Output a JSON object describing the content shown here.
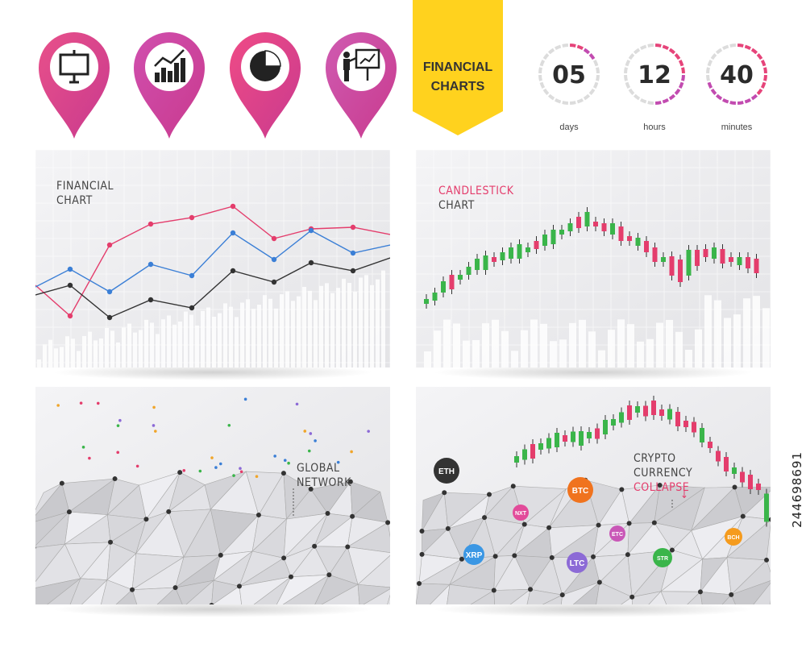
{
  "header": {
    "pins": [
      {
        "icon": "presentation-board-icon",
        "color": "#e8508a"
      },
      {
        "icon": "bar-chart-growth-icon",
        "color": "#d04fae"
      },
      {
        "icon": "pie-chart-icon",
        "color": "#ef4b86"
      },
      {
        "icon": "presenter-board-icon",
        "color": "#cf5bb1"
      }
    ],
    "ribbon": {
      "line1": "FINANCIAL",
      "line2": "CHARTS",
      "color": "#ffd21e"
    },
    "timers": [
      {
        "value": "05",
        "unit": "days",
        "fraction": 0.15
      },
      {
        "value": "12",
        "unit": "hours",
        "fraction": 0.5
      },
      {
        "value": "40",
        "unit": "minutes",
        "fraction": 0.67
      }
    ],
    "timer_accent": "#d6407f"
  },
  "panels": {
    "financial": {
      "line1": "FINANCIAL",
      "line2": "CHART"
    },
    "candlestick": {
      "line1": "CANDLESTICK",
      "line2": "CHART",
      "accent": "#e43d6c"
    },
    "global": {
      "line1": "GLOBAL",
      "line2": "NETWORK"
    },
    "crypto": {
      "line1": "CRYPTO",
      "line2": "CURRENCY",
      "line3": "COLLAPSE",
      "arrow": "↓",
      "coins": [
        {
          "code": "ETH",
          "color": "#333333"
        },
        {
          "code": "BTC",
          "color": "#f0731e"
        },
        {
          "code": "NXT",
          "color": "#e24b9a"
        },
        {
          "code": "XRP",
          "color": "#3b97e4"
        },
        {
          "code": "LTC",
          "color": "#8c6ad6"
        },
        {
          "code": "ETC",
          "color": "#c957b7"
        },
        {
          "code": "STR",
          "color": "#3ab54a"
        },
        {
          "code": "BCH",
          "color": "#f59b1e"
        }
      ]
    }
  },
  "watermark": "244698691"
}
